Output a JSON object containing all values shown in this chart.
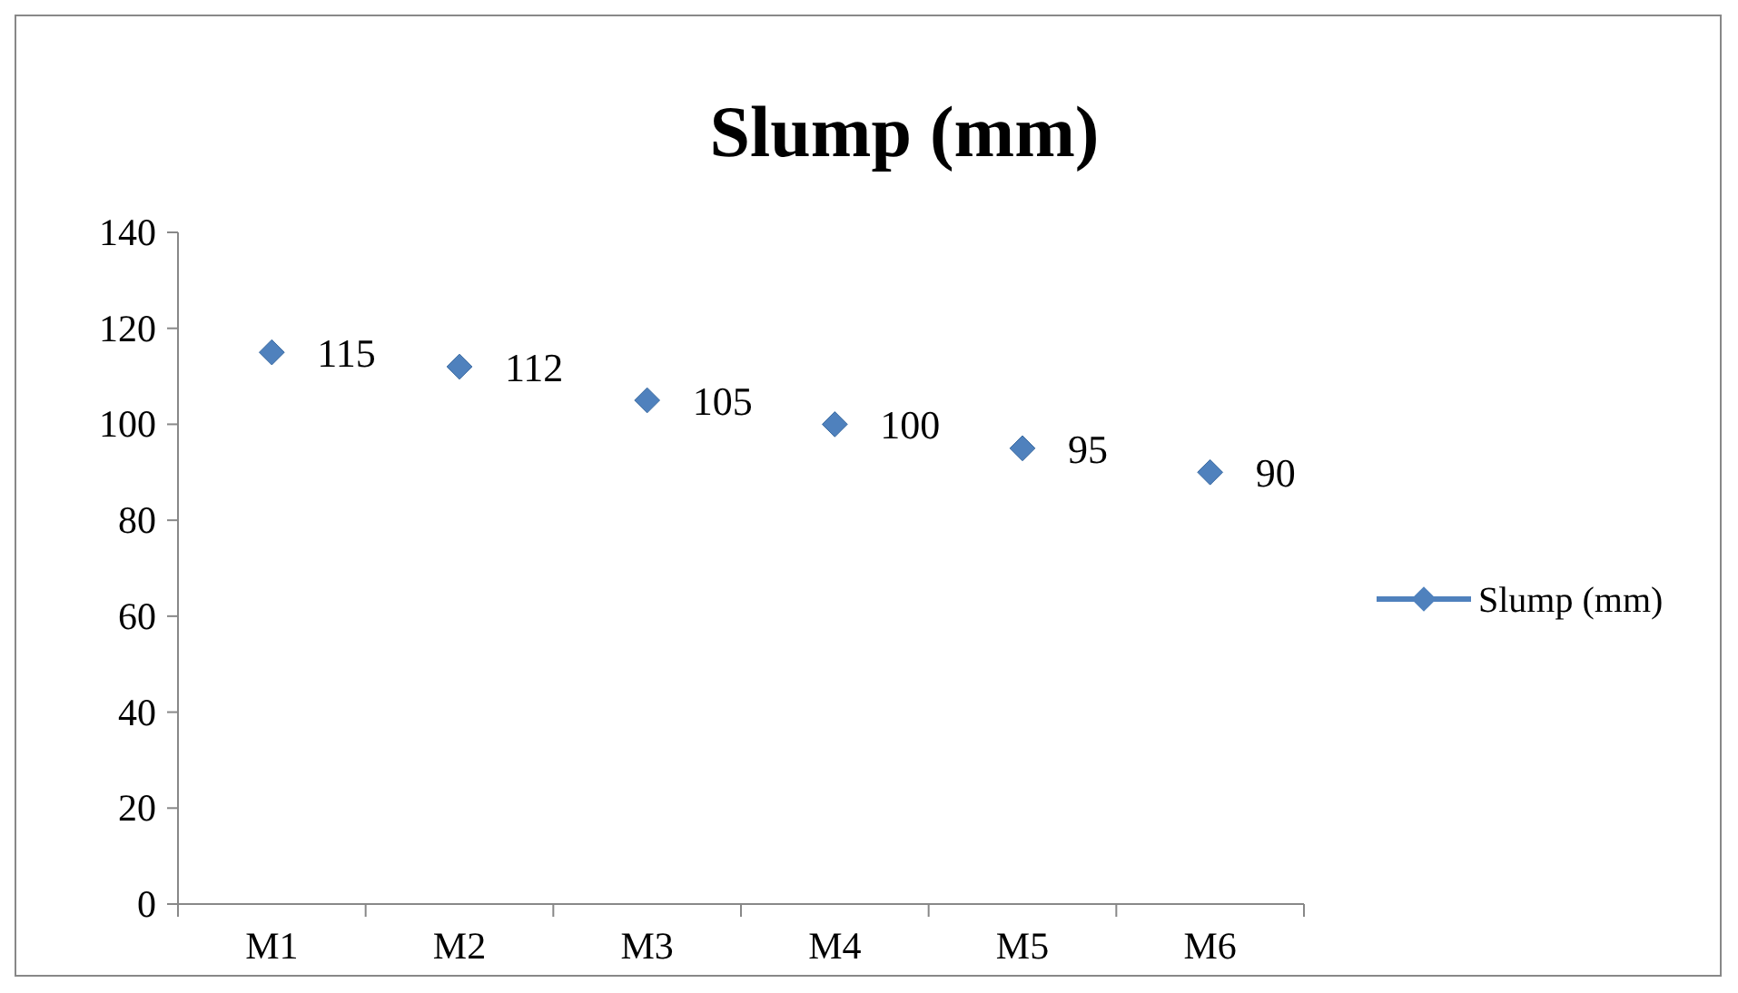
{
  "chart_data": {
    "type": "scatter",
    "title": "Slump (mm)",
    "categories": [
      "M1",
      "M2",
      "M3",
      "M4",
      "M5",
      "M6"
    ],
    "series": [
      {
        "name": "Slump (mm)",
        "color": "#4f81bd",
        "values": [
          115,
          112,
          105,
          100,
          95,
          90
        ]
      }
    ],
    "ylim": [
      0,
      140
    ],
    "yticks": [
      0,
      20,
      40,
      60,
      80,
      100,
      120,
      140
    ],
    "marker": "diamond",
    "data_labels": true,
    "legend": "right",
    "grid": false
  }
}
